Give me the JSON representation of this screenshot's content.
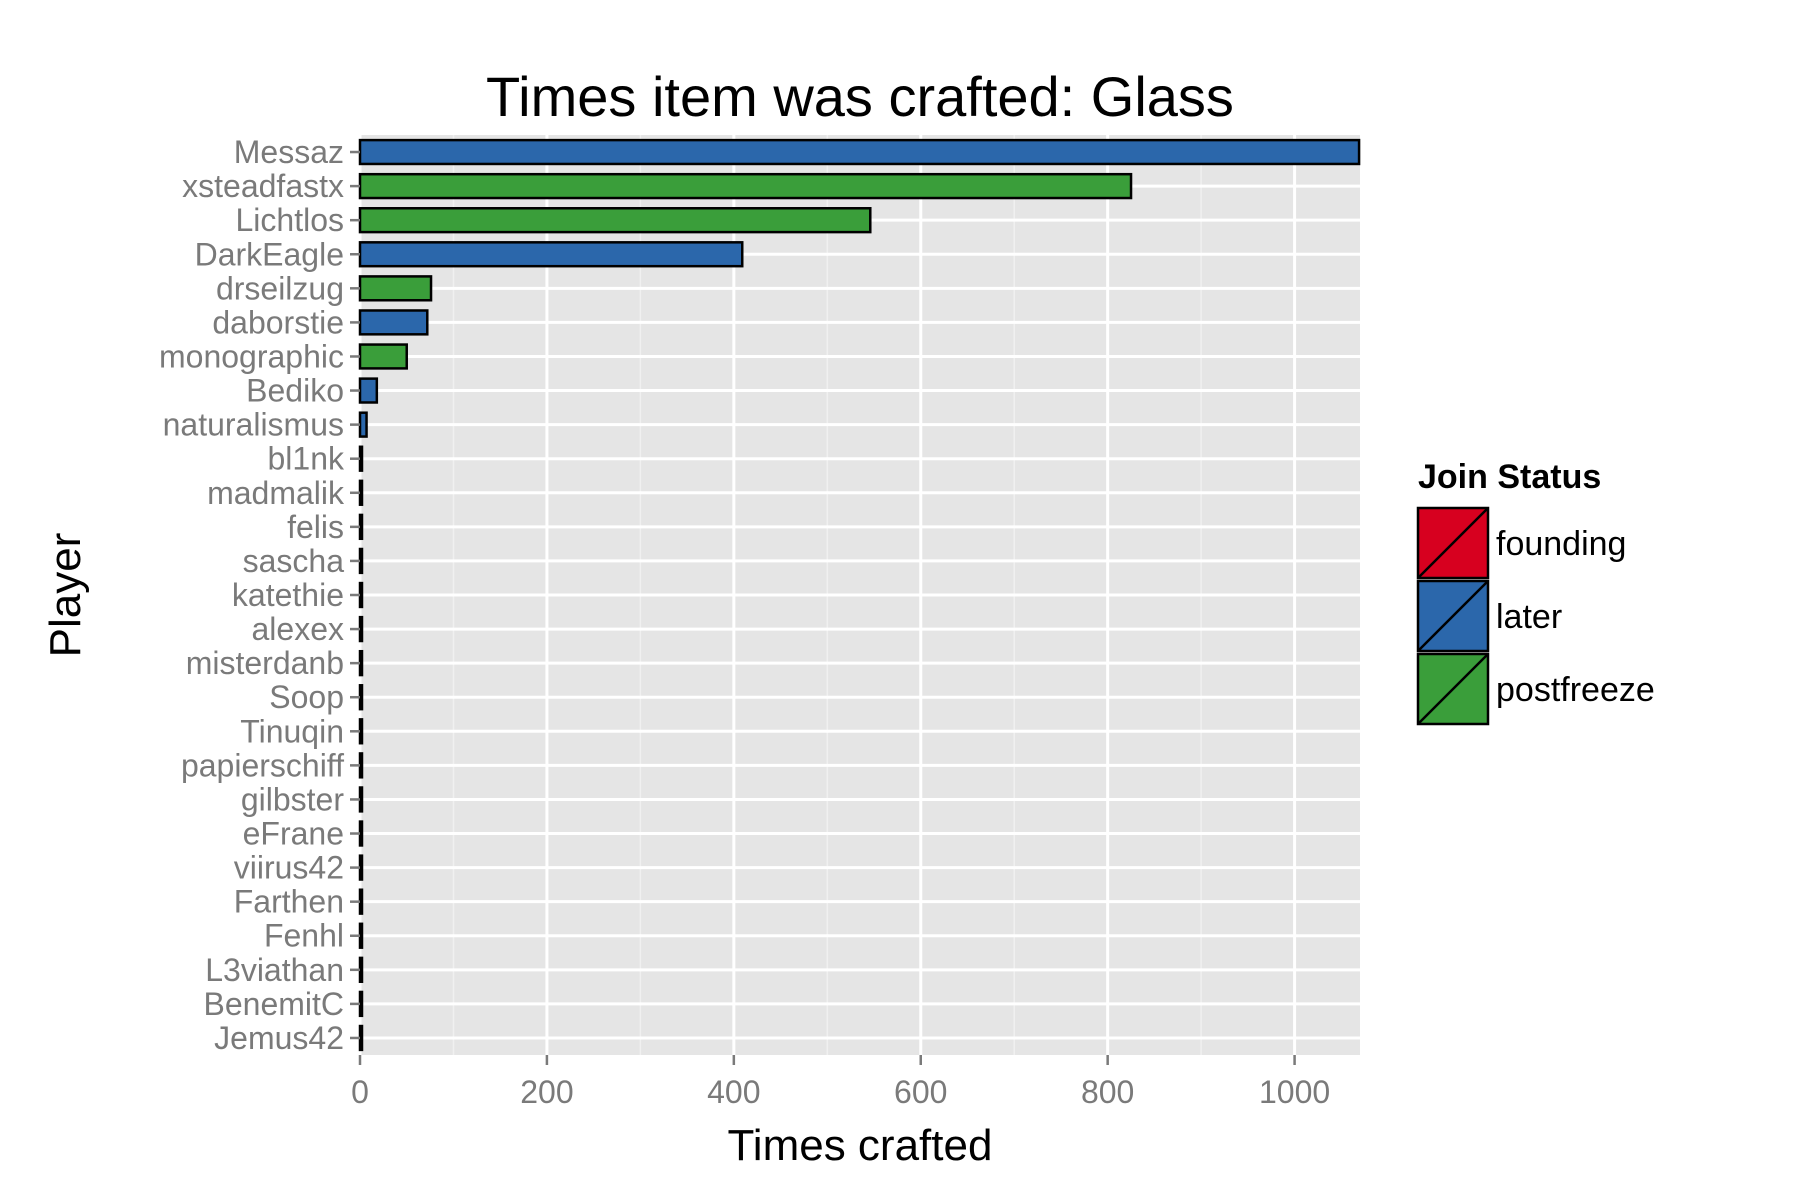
{
  "chart_data": {
    "type": "bar",
    "orientation": "horizontal",
    "title": "Times item was crafted: Glass",
    "xlabel": "Times crafted",
    "ylabel": "Player",
    "xlim": [
      0,
      1070
    ],
    "xticks": [
      0,
      200,
      400,
      600,
      800,
      1000
    ],
    "grid": true,
    "legend": {
      "title": "Join Status",
      "placement": "right",
      "entries": [
        {
          "label": "founding",
          "color": "#d7001f"
        },
        {
          "label": "later",
          "color": "#2b67ab"
        },
        {
          "label": "postfreeze",
          "color": "#3a9e3a"
        }
      ]
    },
    "categories": [
      "Messaz",
      "xsteadfastx",
      "Lichtlos",
      "DarkEagle",
      "drseilzug",
      "daborstie",
      "monographic",
      "Bediko",
      "naturalismus",
      "bl1nk",
      "madmalik",
      "felis",
      "sascha",
      "katethie",
      "alexex",
      "misterdanb",
      "Soop",
      "Tinuqin",
      "papierschiff",
      "gilbster",
      "eFrane",
      "viirus42",
      "Farthen",
      "Fenhl",
      "L3viathan",
      "BenemitC",
      "Jemus42"
    ],
    "values": [
      1069,
      825,
      546,
      409,
      76,
      72,
      50,
      18,
      7,
      2,
      1,
      1,
      1,
      1,
      1,
      1,
      1,
      1,
      1,
      1,
      1,
      1,
      1,
      1,
      1,
      1,
      1
    ],
    "status": [
      "later",
      "postfreeze",
      "postfreeze",
      "later",
      "postfreeze",
      "later",
      "postfreeze",
      "later",
      "later",
      "later",
      "later",
      "later",
      "later",
      "later",
      "later",
      "later",
      "later",
      "later",
      "later",
      "later",
      "later",
      "later",
      "later",
      "later",
      "later",
      "later",
      "later"
    ]
  }
}
